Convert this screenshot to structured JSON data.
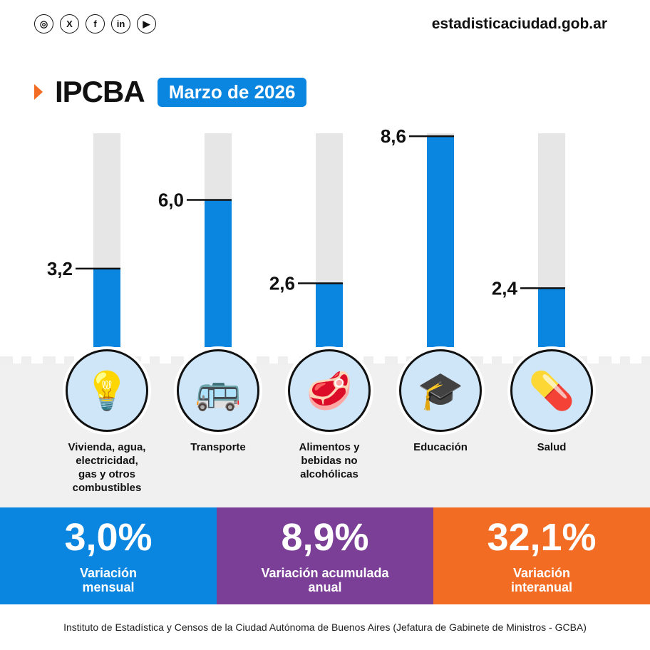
{
  "header": {
    "website": "estadisticaciudad.gob.ar",
    "social": [
      "instagram-icon",
      "x-icon",
      "facebook-icon",
      "linkedin-icon",
      "youtube-icon"
    ],
    "title": "IPCBA",
    "period": "Marzo de 2026"
  },
  "chart_data": {
    "type": "bar",
    "categories": [
      "Vivienda, agua,\nelectricidad,\ngas y otros\ncombustibles",
      "Transporte",
      "Alimentos y\nbebidas no\nalcohólicas",
      "Educación",
      "Salud"
    ],
    "values": [
      3.2,
      6.0,
      2.6,
      8.6,
      2.4
    ],
    "value_labels": [
      "3,2",
      "6,0",
      "2,6",
      "8,6",
      "2,4"
    ],
    "icons": [
      "lightbulb-icon",
      "bus-icon",
      "meat-icon",
      "graduation-cap-icon",
      "pill-icon"
    ],
    "bar_color": "#0b86e0",
    "track_color": "#e6e6e6"
  },
  "summary": [
    {
      "value": "3,0%",
      "label": "Variación\nmensual",
      "color": "#0b86e0"
    },
    {
      "value": "8,9%",
      "label": "Variación acumulada\nanual",
      "color": "#7b3f98"
    },
    {
      "value": "32,1%",
      "label": "Variación\ninteranual",
      "color": "#f26c24"
    }
  ],
  "footer": "Instituto de Estadística y Censos de la Ciudad Autónoma de Buenos Aires (Jefatura de Gabinete de Ministros - GCBA)"
}
